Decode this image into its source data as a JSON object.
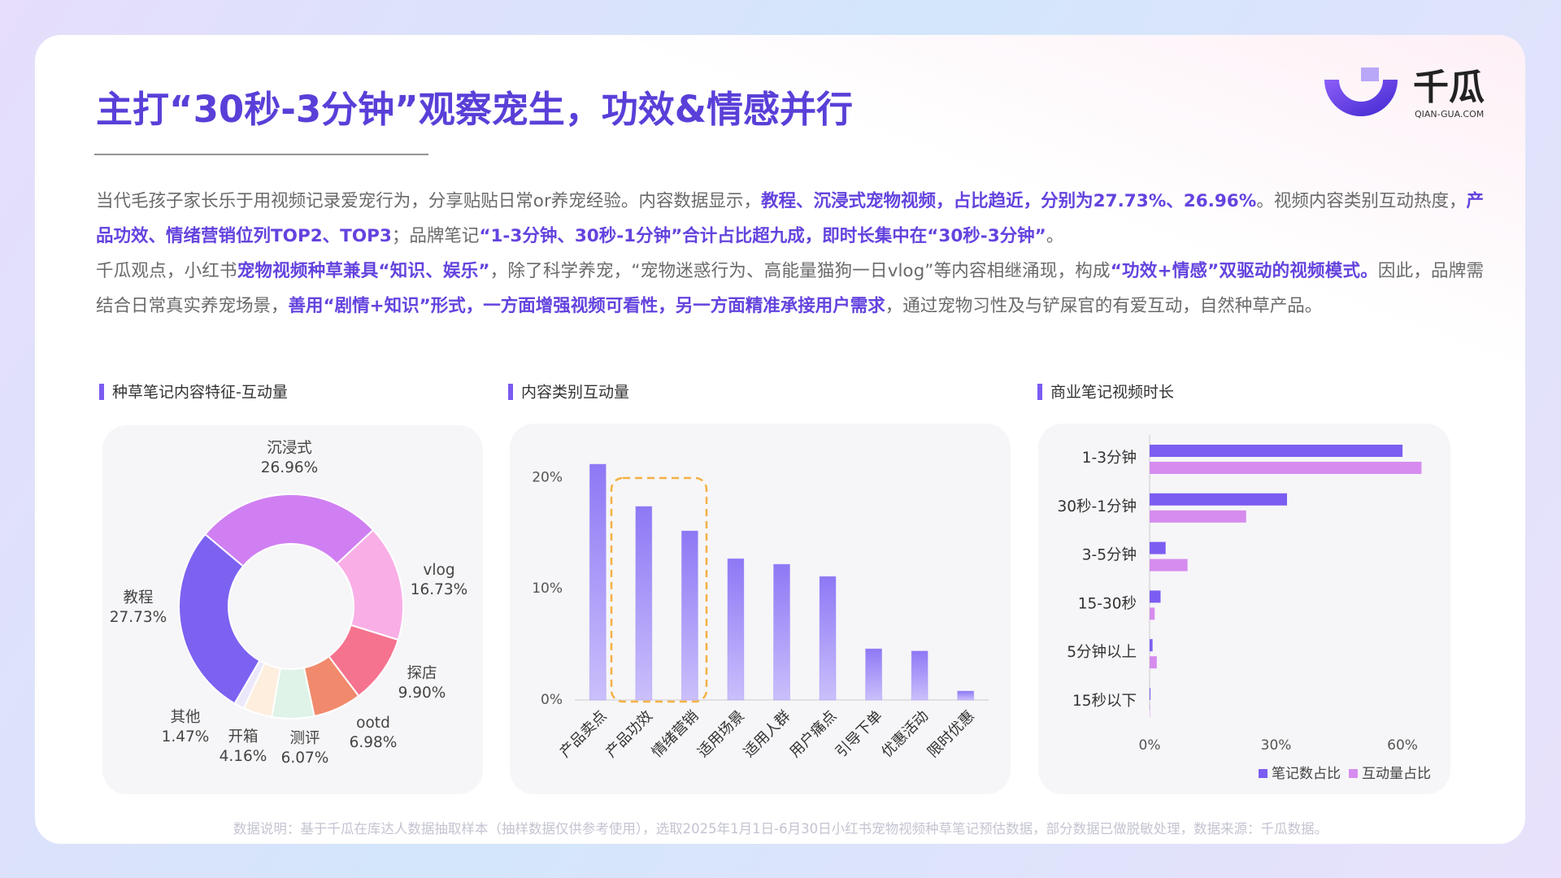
{
  "header": {
    "title": "主打“30秒-3分钟”观察宠生，功效&情感并行",
    "logo": {
      "name": "千瓜",
      "domain": "QIAN-GUA.COM"
    }
  },
  "paragraphs": [
    [
      {
        "text": "当代毛孩子家长乐于用视频记录爱宠行为，分享贴贴日常or养宠经验。内容数据显示，",
        "highlight": false
      },
      {
        "text": "教程、沉浸式宠物视频，占比趋近，分别为27.73%、26.96%",
        "highlight": true
      },
      {
        "text": "。视频内容类别互动热度，",
        "highlight": false
      },
      {
        "text": "产品功效、情绪营销位列TOP2、TOP3",
        "highlight": true
      },
      {
        "text": "；品牌笔记",
        "highlight": false
      },
      {
        "text": "“1-3分钟、30秒-1分钟”合计占比超九成，即时长集中在“30秒-3分钟”",
        "highlight": true
      },
      {
        "text": "。",
        "highlight": false
      }
    ],
    [
      {
        "text": "千瓜观点，小红书",
        "highlight": false
      },
      {
        "text": "宠物视频种草兼具“知识、娱乐”",
        "highlight": true
      },
      {
        "text": "，除了科学养宠，“宠物迷惑行为、高能量猫狗一日vlog”等内容相继涌现，构成",
        "highlight": false
      },
      {
        "text": "“功效+情感”双驱动的视频模式。",
        "highlight": true
      },
      {
        "text": "因此，品牌需结合日常真实养宠场景，",
        "highlight": false
      },
      {
        "text": "善用“剧情+知识”形式，一方面增强视频可看性，另一方面精准承接用户需求",
        "highlight": true
      },
      {
        "text": "，通过宠物习性及与铲屎官的有爱互动，自然种草产品。",
        "highlight": false
      }
    ]
  ],
  "chart_data": [
    {
      "type": "donut",
      "title": "种草笔记内容特征-互动量",
      "categories": [
        "沉浸式",
        "vlog",
        "探店",
        "ootd",
        "测评",
        "开箱",
        "其他",
        "教程"
      ],
      "values": [
        26.96,
        16.73,
        9.9,
        6.98,
        6.07,
        4.16,
        1.47,
        27.73
      ],
      "value_labels": [
        "26.96%",
        "16.73%",
        "9.90%",
        "6.98%",
        "6.07%",
        "4.16%",
        "1.47%",
        "27.73%"
      ],
      "colors": [
        "#d07ff2",
        "#f9aee6",
        "#f5738f",
        "#f18a6c",
        "#dff3e8",
        "#fdeede",
        "#ece8fb",
        "#7d61f1"
      ]
    },
    {
      "type": "bar",
      "title": "内容类别互动量",
      "categories": [
        "产品卖点",
        "产品功效",
        "情绪营销",
        "适用场景",
        "适用人群",
        "用户痛点",
        "引导下单",
        "优惠活动",
        "限时优惠"
      ],
      "values": [
        21.2,
        17.4,
        15.2,
        12.7,
        12.2,
        11.1,
        4.6,
        4.4,
        0.8
      ],
      "color": "#9580f6",
      "ylim": [
        0,
        22
      ],
      "yticks": [
        {
          "value": 0,
          "label": "0%"
        },
        {
          "value": 10,
          "label": "10%"
        },
        {
          "value": 20,
          "label": "20%"
        }
      ]
    },
    {
      "type": "hbar",
      "title": "商业笔记视频时长",
      "categories": [
        "1-3分钟",
        "30秒-1分钟",
        "3-5分钟",
        "15-30秒",
        "5分钟以上",
        "15秒以下"
      ],
      "series": [
        {
          "name": "笔记数占比",
          "color": "#7c5df1",
          "values": [
            60.0,
            32.6,
            3.8,
            2.6,
            0.7,
            0.2
          ]
        },
        {
          "name": "互动量占比",
          "color": "#d68cee",
          "values": [
            64.5,
            22.9,
            9.0,
            1.2,
            1.7,
            0.1
          ]
        }
      ],
      "xlim": [
        0,
        65
      ],
      "xticks": [
        {
          "value": 0,
          "label": "0%"
        },
        {
          "value": 30,
          "label": "30%"
        },
        {
          "value": 60,
          "label": "60%"
        }
      ],
      "legend": "bottom-right"
    }
  ],
  "footnote": "数据说明：基于千瓜在库达人数据抽取样本（抽样数据仅供参考使用），选取2025年1月1日-6月30日小红书宠物视频种草笔记预估数据，部分数据已做脱敏处理，数据来源：千瓜数据。"
}
